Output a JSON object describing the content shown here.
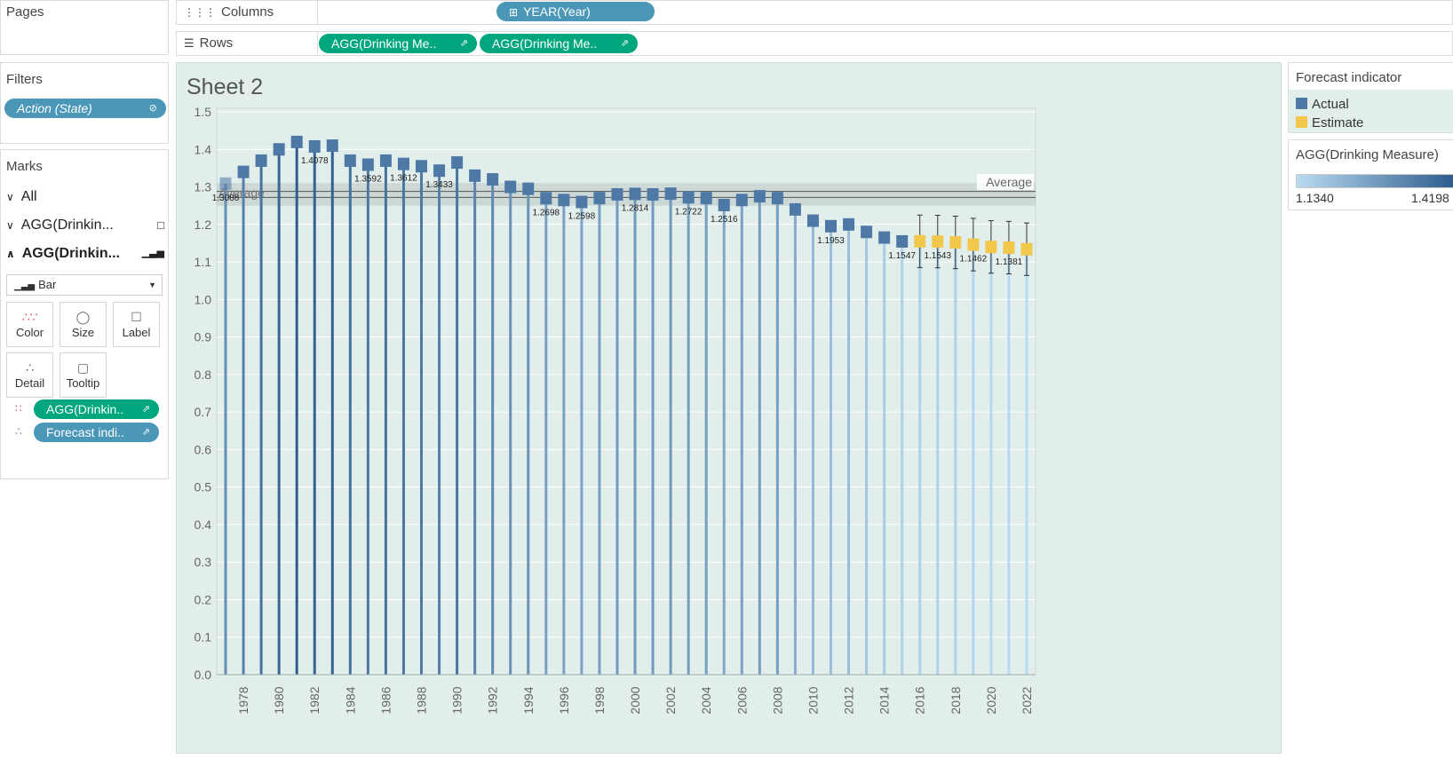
{
  "shelves": {
    "pages_label": "Pages",
    "columns_label": "Columns",
    "columns_pill": "YEAR(Year)",
    "rows_label": "Rows",
    "rows_pills": [
      "AGG(Drinking Me..",
      "AGG(Drinking Me.."
    ]
  },
  "filters": {
    "title": "Filters",
    "pill": "Action (State)"
  },
  "marks": {
    "title": "Marks",
    "rows": [
      "All",
      "AGG(Drinkin...",
      "AGG(Drinkin..."
    ],
    "mark_type": "Bar",
    "cards": [
      "Color",
      "Size",
      "Label",
      "Detail",
      "Tooltip"
    ],
    "pills": [
      "AGG(Drinkin..",
      "Forecast indi.."
    ]
  },
  "sheet": {
    "title": "Sheet 2"
  },
  "legend": {
    "title": "Forecast indicator",
    "items": [
      {
        "label": "Actual",
        "color": "#4e79a7"
      },
      {
        "label": "Estimate",
        "color": "#f1c84b"
      }
    ]
  },
  "color_legend": {
    "title": "AGG(Drinking Measure)",
    "min": "1.1340",
    "max": "1.4198"
  },
  "colors": {
    "accent_teal": "#00a67d",
    "accent_blue": "#4b97b8",
    "pane_bg": "#e1eeec"
  },
  "chart_data": {
    "type": "bar",
    "xlabel": "",
    "ylabel": "",
    "ylim": [
      0,
      1.5
    ],
    "yticks": [
      "0.0",
      "0.1",
      "0.2",
      "0.3",
      "0.4",
      "0.5",
      "0.6",
      "0.7",
      "0.8",
      "0.9",
      "1.0",
      "1.1",
      "1.2",
      "1.3",
      "1.4",
      "1.5"
    ],
    "xticks": [
      "1978",
      "1980",
      "1982",
      "1984",
      "1986",
      "1988",
      "1990",
      "1992",
      "1994",
      "1996",
      "1998",
      "2000",
      "2002",
      "2004",
      "2006",
      "2008",
      "2010",
      "2012",
      "2014",
      "2016",
      "2018",
      "2020",
      "2022"
    ],
    "reference_line": {
      "label": "Average",
      "value": 1.28
    },
    "years": [
      1977,
      1978,
      1979,
      1980,
      1981,
      1982,
      1983,
      1984,
      1985,
      1986,
      1987,
      1988,
      1989,
      1990,
      1991,
      1992,
      1993,
      1994,
      1995,
      1996,
      1997,
      1998,
      1999,
      2000,
      2001,
      2002,
      2003,
      2004,
      2005,
      2006,
      2007,
      2008,
      2009,
      2010,
      2011,
      2012,
      2013,
      2014,
      2015,
      2016,
      2017,
      2018,
      2019,
      2020,
      2021,
      2022
    ],
    "values": [
      1.3088,
      1.34,
      1.37,
      1.4,
      1.4198,
      1.4078,
      1.41,
      1.37,
      1.3592,
      1.37,
      1.3612,
      1.355,
      1.3433,
      1.365,
      1.33,
      1.32,
      1.3,
      1.295,
      1.2698,
      1.265,
      1.2598,
      1.27,
      1.28,
      1.2814,
      1.28,
      1.282,
      1.2722,
      1.27,
      1.2516,
      1.265,
      1.275,
      1.27,
      1.24,
      1.21,
      1.1953,
      1.2,
      1.18,
      1.165,
      1.1547,
      1.155,
      1.1543,
      1.152,
      1.1462,
      1.14,
      1.1381,
      1.134
    ],
    "forecast": [
      "Actual",
      "Actual",
      "Actual",
      "Actual",
      "Actual",
      "Actual",
      "Actual",
      "Actual",
      "Actual",
      "Actual",
      "Actual",
      "Actual",
      "Actual",
      "Actual",
      "Actual",
      "Actual",
      "Actual",
      "Actual",
      "Actual",
      "Actual",
      "Actual",
      "Actual",
      "Actual",
      "Actual",
      "Actual",
      "Actual",
      "Actual",
      "Actual",
      "Actual",
      "Actual",
      "Actual",
      "Actual",
      "Actual",
      "Actual",
      "Actual",
      "Actual",
      "Actual",
      "Actual",
      "Actual",
      "Estimate",
      "Estimate",
      "Estimate",
      "Estimate",
      "Estimate",
      "Estimate",
      "Estimate"
    ],
    "data_labels": {
      "1977": "1.3088",
      "1982": "1.4078",
      "1985": "1.3592",
      "1987": "1.3612",
      "1989": "1.3433",
      "1995": "1.2698",
      "1997": "1.2598",
      "2000": "1.2814",
      "2003": "1.2722",
      "2005": "1.2516",
      "2011": "1.1953",
      "2015": "1.1547",
      "2017": "1.1543",
      "2019": "1.1462",
      "2021": "1.1381"
    }
  }
}
